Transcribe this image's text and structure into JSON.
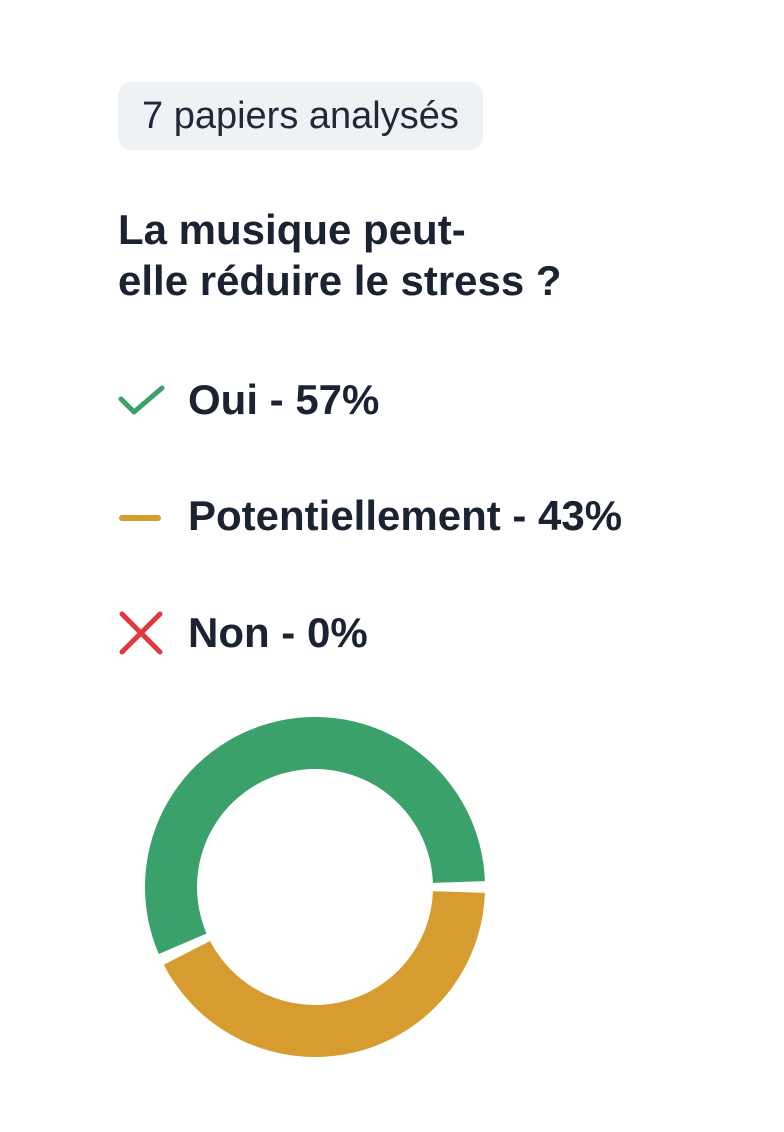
{
  "badge": {
    "label": "7 papiers analysés"
  },
  "question": {
    "line1": "La musique peut-",
    "line2": "elle réduire le stress ?"
  },
  "answers": [
    {
      "label": "Oui - 57%",
      "icon": "check-icon",
      "color": "#3aa16a"
    },
    {
      "label": "Potentiellement - 43%",
      "icon": "dash-icon",
      "color": "#d69c2f"
    },
    {
      "label": "Non - 0%",
      "icon": "cross-icon",
      "color": "#e0393e"
    }
  ],
  "chart_data": {
    "type": "pie",
    "categories": [
      "Oui",
      "Potentiellement",
      "Non"
    ],
    "values": [
      57,
      43,
      0
    ],
    "colors": [
      "#3aa16a",
      "#d69c2f",
      "#e0393e"
    ]
  }
}
